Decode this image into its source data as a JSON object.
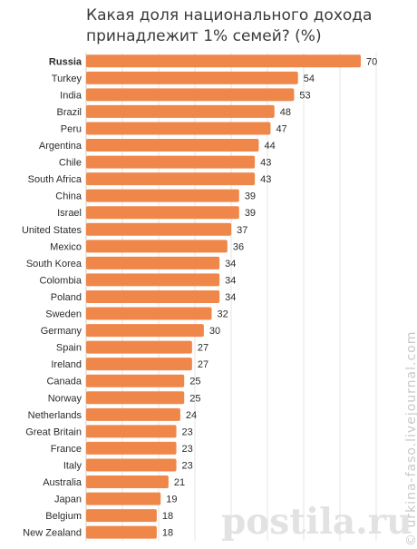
{
  "watermark_text": "© urkina-faso.livejournal.com",
  "brand_text": "postila.ru",
  "chart_data": {
    "type": "bar",
    "orientation": "horizontal",
    "title": "Какая доля национального дохода принадлежит 1% семей? (%)",
    "categories": [
      "Russia",
      "Turkey",
      "India",
      "Brazil",
      "Peru",
      "Argentina",
      "Chile",
      "South Africa",
      "China",
      "Israel",
      "United States",
      "Mexico",
      "South Korea",
      "Colombia",
      "Poland",
      "Sweden",
      "Germany",
      "Spain",
      "Ireland",
      "Canada",
      "Norway",
      "Netherlands",
      "Great Britain",
      "France",
      "Italy",
      "Australia",
      "Japan",
      "Belgium",
      "New Zealand"
    ],
    "values": [
      70,
      54,
      53,
      48,
      47,
      44,
      43,
      43,
      39,
      39,
      37,
      36,
      34,
      34,
      34,
      32,
      30,
      27,
      27,
      25,
      25,
      24,
      23,
      23,
      23,
      21,
      19,
      18,
      18
    ],
    "highlight_category": "Russia",
    "xlim": [
      0,
      70
    ],
    "bar_color": "#f0874a",
    "grid": true
  }
}
